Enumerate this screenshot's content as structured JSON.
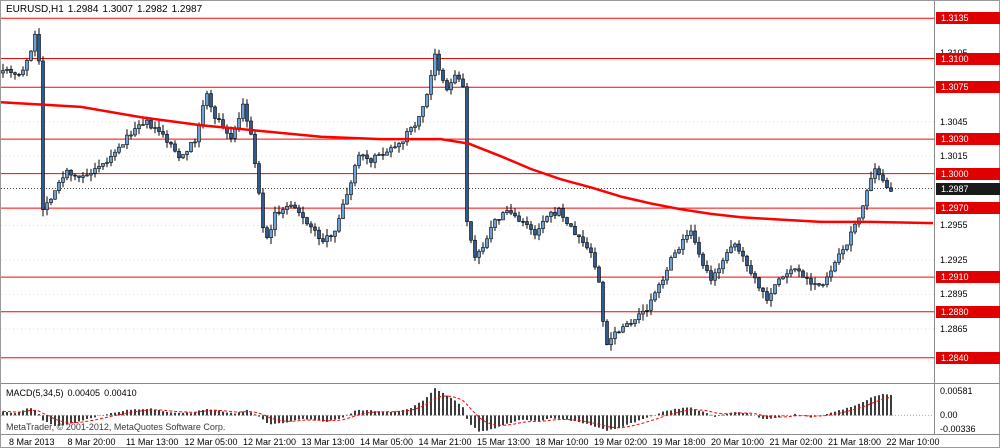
{
  "window": {
    "symbol_period": "EURUSD,H1",
    "open": "1.2984",
    "high": "1.3007",
    "low": "1.2982",
    "close": "1.2987"
  },
  "footer": {
    "copyright": "MetaTrader, © 2001-2012, MetaQuotes Software Corp."
  },
  "colors": {
    "level_line": "#ff0000",
    "ma_line": "#ff0000",
    "candle_up": "#6aa2d8",
    "candle_down": "#2f5b8f",
    "candle_outline": "#000000",
    "bid_line": "#444444",
    "macd_bar": "#3c3c3c",
    "macd_signal": "#ff0000",
    "badge_red": "#e00000",
    "badge_black": "#1a1a1a",
    "grid_dot": "#e0e0e0"
  },
  "chart_data": {
    "type": "candlestick",
    "symbol": "EURUSD",
    "timeframe": "H1",
    "legend_position": "none",
    "grid": "horizontal-dotted",
    "price_axis": {
      "top_price": 1.315,
      "bottom_price": 1.2818,
      "grid_labels": [
        "1.3105",
        "1.3045",
        "1.3015",
        "1.2955",
        "1.2925",
        "1.2895",
        "1.2865"
      ],
      "level_lines": [
        "1.3135",
        "1.3100",
        "1.3075",
        "1.3030",
        "1.3000",
        "1.2970",
        "1.2910",
        "1.2880",
        "1.2840"
      ],
      "bid_price": "1.2987"
    },
    "time_labels": [
      "8 Mar 2013",
      "8 Mar 20:00",
      "11 Mar 13:00",
      "12 Mar 05:00",
      "12 Mar 21:00",
      "13 Mar 13:00",
      "14 Mar 05:00",
      "14 Mar 21:00",
      "15 Mar 13:00",
      "18 Mar 10:00",
      "19 Mar 02:00",
      "19 Mar 18:00",
      "20 Mar 10:00",
      "21 Mar 02:00",
      "21 Mar 18:00",
      "22 Mar 10:00"
    ],
    "bars": 223,
    "close_anchors": [
      [
        0,
        1.3092
      ],
      [
        4,
        1.3086
      ],
      [
        6,
        1.3096
      ],
      [
        7,
        1.3108
      ],
      [
        8,
        1.3122
      ],
      [
        9,
        1.31
      ],
      [
        10,
        1.2968
      ],
      [
        12,
        1.298
      ],
      [
        16,
        1.3002
      ],
      [
        20,
        1.2996
      ],
      [
        24,
        1.3004
      ],
      [
        28,
        1.3017
      ],
      [
        32,
        1.3036
      ],
      [
        36,
        1.3044
      ],
      [
        40,
        1.3033
      ],
      [
        44,
        1.3015
      ],
      [
        48,
        1.3028
      ],
      [
        50,
        1.3058
      ],
      [
        51,
        1.3068
      ],
      [
        53,
        1.305
      ],
      [
        57,
        1.3031
      ],
      [
        60,
        1.3058
      ],
      [
        62,
        1.3034
      ],
      [
        65,
        1.2955
      ],
      [
        66,
        1.2942
      ],
      [
        68,
        1.2965
      ],
      [
        72,
        1.2972
      ],
      [
        76,
        1.2958
      ],
      [
        80,
        1.294
      ],
      [
        83,
        1.2952
      ],
      [
        86,
        1.2982
      ],
      [
        89,
        1.3018
      ],
      [
        92,
        1.3012
      ],
      [
        96,
        1.302
      ],
      [
        100,
        1.303
      ],
      [
        104,
        1.3048
      ],
      [
        106,
        1.307
      ],
      [
        108,
        1.3102
      ],
      [
        109,
        1.3088
      ],
      [
        111,
        1.3072
      ],
      [
        113,
        1.3086
      ],
      [
        115,
        1.3076
      ],
      [
        116,
        1.2958
      ],
      [
        118,
        1.2925
      ],
      [
        120,
        1.2938
      ],
      [
        123,
        1.2958
      ],
      [
        126,
        1.2968
      ],
      [
        130,
        1.2958
      ],
      [
        133,
        1.2946
      ],
      [
        136,
        1.2962
      ],
      [
        139,
        1.2968
      ],
      [
        142,
        1.2952
      ],
      [
        145,
        1.294
      ],
      [
        147,
        1.2932
      ],
      [
        149,
        1.2905
      ],
      [
        150,
        1.2872
      ],
      [
        151,
        1.2853
      ],
      [
        153,
        1.2862
      ],
      [
        156,
        1.287
      ],
      [
        158,
        1.2874
      ],
      [
        161,
        1.2882
      ],
      [
        164,
        1.2902
      ],
      [
        167,
        1.2925
      ],
      [
        170,
        1.2942
      ],
      [
        172,
        1.2948
      ],
      [
        174,
        1.2928
      ],
      [
        177,
        1.2906
      ],
      [
        180,
        1.2926
      ],
      [
        183,
        1.2938
      ],
      [
        186,
        1.2922
      ],
      [
        189,
        1.2902
      ],
      [
        191,
        1.2892
      ],
      [
        194,
        1.2908
      ],
      [
        198,
        1.2918
      ],
      [
        202,
        1.2906
      ],
      [
        205,
        1.2902
      ],
      [
        208,
        1.2922
      ],
      [
        211,
        1.294
      ],
      [
        214,
        1.2962
      ],
      [
        216,
        1.2985
      ],
      [
        218,
        1.3002
      ],
      [
        220,
        1.2992
      ],
      [
        222,
        1.2987
      ]
    ],
    "ma_anchors": [
      [
        0,
        1.3062
      ],
      [
        80,
        1.3058
      ],
      [
        140,
        1.3049
      ],
      [
        200,
        1.3042
      ],
      [
        260,
        1.3037
      ],
      [
        320,
        1.3032
      ],
      [
        380,
        1.303
      ],
      [
        440,
        1.303
      ],
      [
        468,
        1.3026
      ],
      [
        500,
        1.3015
      ],
      [
        530,
        1.3004
      ],
      [
        560,
        1.2995
      ],
      [
        590,
        1.2988
      ],
      [
        620,
        1.298
      ],
      [
        650,
        1.2974
      ],
      [
        680,
        1.2969
      ],
      [
        710,
        1.2965
      ],
      [
        740,
        1.2962
      ],
      [
        780,
        1.296
      ],
      [
        820,
        1.2958
      ],
      [
        870,
        1.2958
      ],
      [
        932,
        1.2957
      ]
    ],
    "macd": {
      "name": "MACD(5,34,5)",
      "value_main": "0.00405",
      "value_signal": "0.00410",
      "axis_max": 0.00581,
      "axis_min": -0.00336,
      "axis_labels": [
        "0.00581",
        "0.00",
        "-0.00336"
      ],
      "hist_anchors": [
        [
          0,
          0.0008
        ],
        [
          16,
          0.0005
        ],
        [
          28,
          0.0016
        ],
        [
          36,
          0.0008
        ],
        [
          42,
          -0.001
        ],
        [
          56,
          -0.0021
        ],
        [
          72,
          -0.0015
        ],
        [
          90,
          -0.0005
        ],
        [
          110,
          0.0005
        ],
        [
          130,
          0.0011
        ],
        [
          150,
          0.0013
        ],
        [
          170,
          0.0006
        ],
        [
          190,
          0.0005
        ],
        [
          206,
          0.0013
        ],
        [
          222,
          0.0007
        ],
        [
          236,
          0.0004
        ],
        [
          246,
          0.0011
        ],
        [
          258,
          -0.0003
        ],
        [
          268,
          -0.0017
        ],
        [
          284,
          -0.0015
        ],
        [
          300,
          -0.0007
        ],
        [
          314,
          -0.0009
        ],
        [
          326,
          -0.0012
        ],
        [
          340,
          -0.0005
        ],
        [
          356,
          0.001
        ],
        [
          372,
          0.0009
        ],
        [
          390,
          0.0007
        ],
        [
          408,
          0.0012
        ],
        [
          422,
          0.0028
        ],
        [
          434,
          0.0052
        ],
        [
          444,
          0.004
        ],
        [
          454,
          0.0028
        ],
        [
          462,
          0.0015
        ],
        [
          468,
          -0.0016
        ],
        [
          478,
          -0.003
        ],
        [
          490,
          -0.0027
        ],
        [
          505,
          -0.0016
        ],
        [
          520,
          -0.0009
        ],
        [
          536,
          -0.0011
        ],
        [
          552,
          -0.0005
        ],
        [
          568,
          -0.0009
        ],
        [
          582,
          -0.0015
        ],
        [
          594,
          -0.0021
        ],
        [
          606,
          -0.0029
        ],
        [
          618,
          -0.0024
        ],
        [
          632,
          -0.0014
        ],
        [
          646,
          -0.0005
        ],
        [
          660,
          0.0006
        ],
        [
          676,
          0.0013
        ],
        [
          690,
          0.0015
        ],
        [
          702,
          0.0007
        ],
        [
          714,
          -0.0003
        ],
        [
          726,
          0.0004
        ],
        [
          738,
          0.0007
        ],
        [
          752,
          0.0001
        ],
        [
          764,
          -0.0008
        ],
        [
          778,
          -0.0003
        ],
        [
          794,
          0.0002
        ],
        [
          810,
          -0.0004
        ],
        [
          826,
          0.0003
        ],
        [
          842,
          0.0012
        ],
        [
          858,
          0.0022
        ],
        [
          872,
          0.0036
        ],
        [
          882,
          0.0041
        ],
        [
          890,
          0.004
        ]
      ]
    }
  }
}
